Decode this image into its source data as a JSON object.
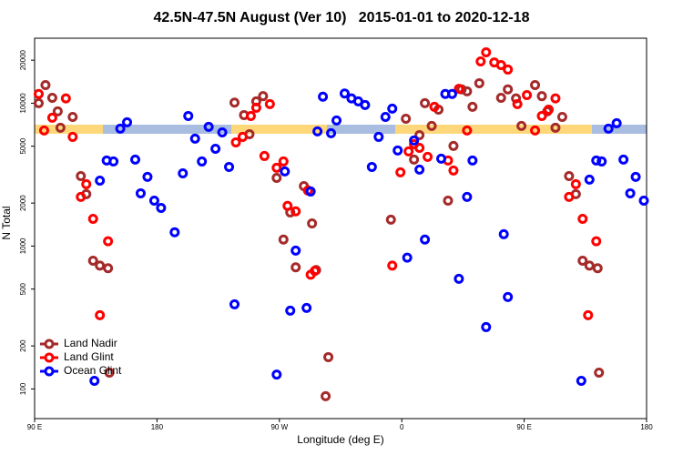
{
  "chart_data": {
    "type": "scatter",
    "title": "42.5N-47.5N August (Ver 10)   2015-01-01 to 2020-12-18",
    "xlabel": "Longitude (deg E)",
    "ylabel": "N Total",
    "xlim": [
      90,
      540
    ],
    "ylim": [
      62,
      28500
    ],
    "log_y": true,
    "legend": "bottom left",
    "xticks": [
      {
        "value": 90,
        "label": "90 E"
      },
      {
        "value": 180,
        "label": "180"
      },
      {
        "value": 270,
        "label": "90 W"
      },
      {
        "value": 360,
        "label": "0"
      },
      {
        "value": 450,
        "label": "90 E"
      },
      {
        "value": 540,
        "label": "180"
      }
    ],
    "yticks": [
      100,
      200,
      500,
      1000,
      2000,
      5000,
      10000,
      20000
    ],
    "series": [
      {
        "name": "Land Nadir",
        "color": "#a52a2a",
        "x": [
          93,
          98,
          103,
          107,
          109,
          118,
          124,
          128,
          133,
          138,
          144,
          145,
          237,
          244,
          248,
          253,
          258,
          268,
          273,
          278,
          282,
          288,
          294,
          297,
          304,
          306,
          352,
          363,
          369,
          373,
          377,
          382,
          387,
          394,
          398,
          404,
          408,
          412,
          417,
          433,
          438,
          444,
          448,
          458,
          463,
          467,
          473,
          478,
          483,
          488,
          493,
          498,
          504,
          505
        ],
        "values": [
          10000,
          13400,
          10900,
          8770,
          6730,
          8020,
          3090,
          2310,
          790,
          730,
          700,
          130,
          10100,
          8260,
          6070,
          10300,
          11200,
          3000,
          1110,
          1720,
          710,
          2630,
          1440,
          680,
          89,
          167,
          1530,
          7790,
          4030,
          5980,
          10000,
          6930,
          9020,
          2080,
          5020,
          12500,
          12100,
          9430,
          13800,
          10900,
          12500,
          10800,
          6930,
          13400,
          11200,
          8770,
          6730,
          8020,
          3090,
          2310,
          790,
          730,
          700,
          130
        ]
      },
      {
        "name": "Land Glint",
        "color": "#ff0000",
        "x": [
          93,
          97,
          103,
          113,
          118,
          124,
          128,
          133,
          138,
          144,
          238,
          243,
          249,
          253,
          263,
          259,
          268,
          273,
          276,
          282,
          291,
          293,
          296,
          353,
          359,
          365,
          369,
          373,
          379,
          384,
          394,
          398,
          402,
          408,
          418,
          422,
          428,
          433,
          438,
          445,
          452,
          458,
          463,
          468,
          473,
          483,
          488,
          493,
          497,
          503
        ],
        "values": [
          11600,
          6440,
          7910,
          10800,
          5810,
          2210,
          2710,
          1550,
          328,
          1080,
          5320,
          5810,
          8140,
          9290,
          9860,
          4270,
          3530,
          3910,
          1910,
          1750,
          2450,
          630,
          670,
          730,
          3280,
          4600,
          5170,
          4870,
          4210,
          9430,
          3970,
          3380,
          12600,
          6440,
          19600,
          22700,
          19300,
          18500,
          17200,
          9860,
          11400,
          6440,
          8140,
          9020,
          10800,
          2210,
          2710,
          1550,
          328,
          1080
        ]
      },
      {
        "name": "Ocean Glint",
        "color": "#0000ff",
        "x": [
          134,
          138,
          143,
          148,
          153,
          158,
          164,
          168,
          173,
          178,
          183,
          193,
          199,
          203,
          208,
          213,
          218,
          223,
          228,
          233,
          237,
          268,
          274,
          278,
          282,
          290,
          293,
          298,
          302,
          308,
          312,
          318,
          323,
          328,
          333,
          338,
          343,
          348,
          353,
          357,
          364,
          369,
          373,
          377,
          389,
          392,
          397,
          402,
          408,
          412,
          422,
          435,
          438,
          492,
          498,
          503,
          507,
          512,
          518,
          523,
          528,
          532,
          538
        ],
        "values": [
          114,
          2870,
          3970,
          3910,
          6640,
          7350,
          4030,
          2340,
          3050,
          2080,
          1850,
          1250,
          3230,
          8140,
          5650,
          3910,
          6830,
          4800,
          6250,
          3580,
          391,
          126,
          3330,
          353,
          930,
          369,
          2410,
          6350,
          11100,
          6170,
          7570,
          11700,
          10800,
          10300,
          9710,
          3580,
          5810,
          8020,
          9160,
          4670,
          830,
          5480,
          3430,
          1110,
          4090,
          11600,
          11600,
          590,
          2210,
          3970,
          271,
          1210,
          440,
          114,
          2920,
          3970,
          3910,
          6640,
          7240,
          4030,
          2340,
          3050,
          2080
        ]
      }
    ]
  }
}
